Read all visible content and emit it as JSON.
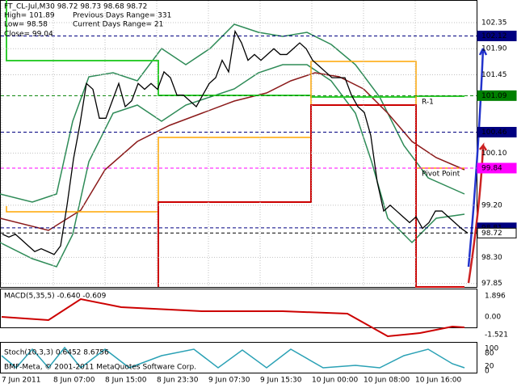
{
  "chart_data": {
    "type": "line",
    "title": "FT_CL-Jul,M30  98.72 98.73 98.68 98.72",
    "info": [
      "High= 101.89",
      "Previous Days Range= 331",
      "Low= 98.58",
      "Current Days Range= 21",
      "Close= 99.04"
    ],
    "annotations": [
      "R-1",
      "Pivot Point"
    ],
    "time_labels": [
      "7 Jun 2011",
      "8 Jun 07:00",
      "8 Jun 15:00",
      "8 Jun 23:30",
      "9 Jun 07:30",
      "9 Jun 15:30",
      "10 Jun 00:00",
      "10 Jun 08:00",
      "10 Jun 16:00"
    ],
    "series": [
      {
        "name": "FT_CL-Jul",
        "color": "#000000",
        "values": [
          98.7,
          98.65,
          98.7,
          98.6,
          98.5,
          98.4,
          98.45,
          98.4,
          98.35,
          98.5,
          99.2,
          100.0,
          100.6,
          101.3,
          101.2,
          100.7,
          100.7,
          101.0,
          101.3,
          100.9,
          101.0,
          101.3,
          101.2,
          101.3,
          101.2,
          101.5,
          101.4,
          101.1,
          101.1,
          101.0,
          100.9,
          101.1,
          101.3,
          101.4,
          101.7,
          101.5,
          102.2,
          102.0,
          101.7,
          101.8,
          101.7,
          101.8,
          101.9,
          101.8,
          101.8,
          101.9,
          102.0,
          101.9,
          101.7,
          101.6,
          101.5,
          101.4,
          101.4,
          101.4,
          101.1,
          100.9,
          100.8,
          100.4,
          99.6,
          99.1,
          99.2,
          99.1,
          99.0,
          98.9,
          99.0,
          98.8,
          98.9,
          99.1,
          99.1,
          99.0,
          98.9,
          98.8,
          98.72
        ]
      }
    ],
    "ylim": [
      97.79,
      102.74
    ],
    "yticks": [
      102.35,
      {
        "value": 101.9,
        "label": "101.90"
      },
      101.45,
      {
        "value": 100.1,
        "label": "100.10"
      },
      {
        "value": 99.2,
        "label": "99.20"
      },
      {
        "value": 98.3,
        "label": "98.30"
      },
      97.85
    ],
    "levels": [
      {
        "value": 102.12,
        "color": "#000080"
      },
      {
        "value": 101.09,
        "color": "#008000"
      },
      {
        "value": 100.46,
        "color": "#000080"
      },
      {
        "value": 99.84,
        "color": "#ff00ff"
      },
      {
        "value": 98.81,
        "color": "#000080"
      },
      {
        "value": 98.72,
        "color": "#ffffff"
      }
    ],
    "macd": {
      "label": "MACD(5,35,5) -0.640 -0.609",
      "ticks": [
        1.896,
        {
          "value": 0,
          "label": "0.00"
        },
        -1.521
      ]
    },
    "stoch": {
      "label": "Stoch(10,3,3) 0.6452 8.6756",
      "ticks": [
        100,
        80,
        20,
        0
      ]
    },
    "footer": "BMF-Meta, © 2001-2011 MetaQuotes Software Corp."
  }
}
